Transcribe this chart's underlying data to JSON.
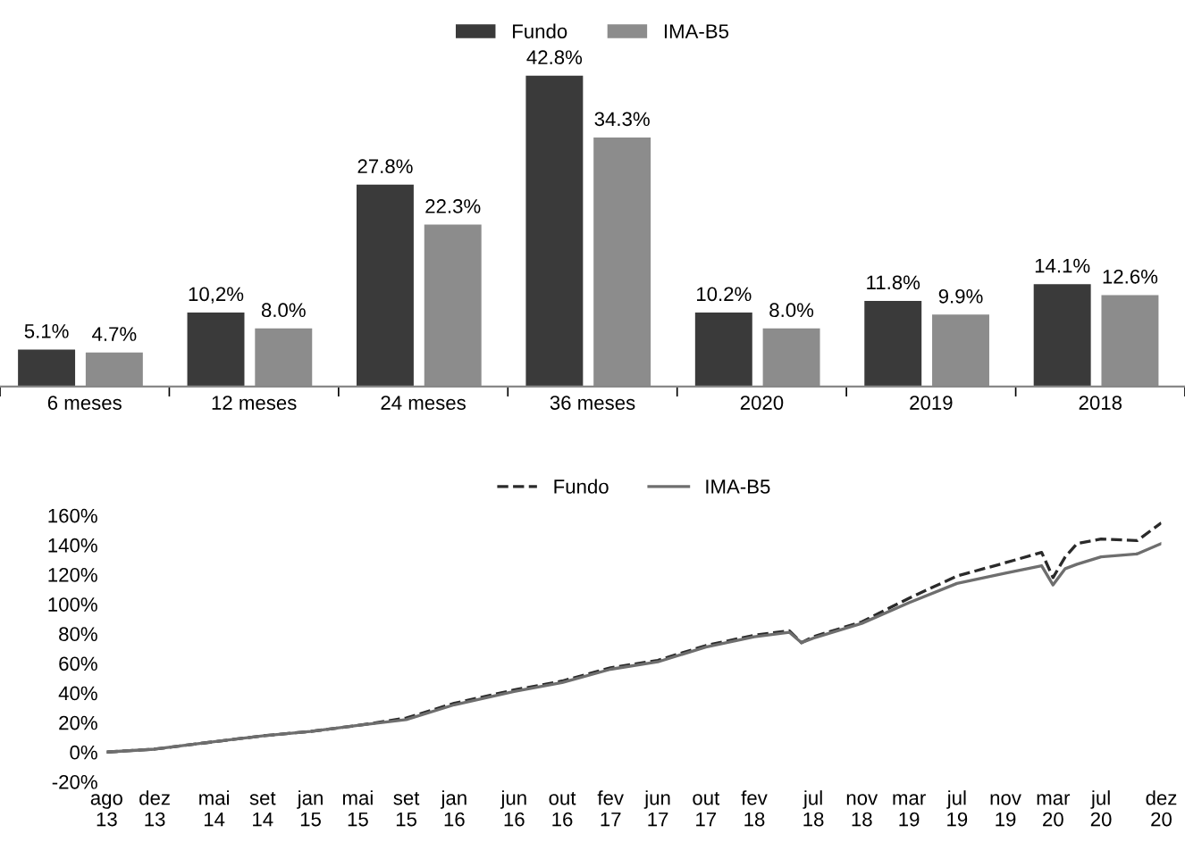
{
  "chart_data": [
    {
      "type": "bar",
      "categories": [
        "6 meses",
        "12 meses",
        "24 meses",
        "36 meses",
        "2020",
        "2019",
        "2018"
      ],
      "legend": "top",
      "series": [
        {
          "name": "Fundo",
          "color": "#3a3a3a",
          "values": [
            5.1,
            10.2,
            27.8,
            42.8,
            10.2,
            11.8,
            14.1
          ],
          "value_labels": [
            "5.1%",
            "10,2%",
            "27.8%",
            "42.8%",
            "10.2%",
            "11.8%",
            "14.1%"
          ]
        },
        {
          "name": "IMA-B5",
          "color": "#8c8c8c",
          "values": [
            4.7,
            8.0,
            22.3,
            34.3,
            8.0,
            9.9,
            12.6
          ],
          "value_labels": [
            "4.7%",
            "8.0%",
            "22.3%",
            "34.3%",
            "8.0%",
            "9.9%",
            "12.6%"
          ]
        }
      ]
    },
    {
      "type": "line",
      "legend": "top",
      "grid": false,
      "ylim": [
        -20,
        160
      ],
      "yticks": [
        {
          "value": -20,
          "label": "-20%"
        },
        {
          "value": 0,
          "label": "0%"
        },
        {
          "value": 20,
          "label": "20%"
        },
        {
          "value": 40,
          "label": "40%"
        },
        {
          "value": 60,
          "label": "60%"
        },
        {
          "value": 80,
          "label": "80%"
        },
        {
          "value": 100,
          "label": "100%"
        },
        {
          "value": 120,
          "label": "120%"
        },
        {
          "value": 140,
          "label": "140%"
        },
        {
          "value": 160,
          "label": "160%"
        }
      ],
      "xlim": [
        "2013-08",
        "2020-12"
      ],
      "xticks": [
        {
          "value": "2013-08",
          "label": "ago\n13"
        },
        {
          "value": "2013-12",
          "label": "dez\n13"
        },
        {
          "value": "2014-05",
          "label": "mai\n14"
        },
        {
          "value": "2014-09",
          "label": "set\n14"
        },
        {
          "value": "2015-01",
          "label": "jan\n15"
        },
        {
          "value": "2015-05",
          "label": "mai\n15"
        },
        {
          "value": "2015-09",
          "label": "set\n15"
        },
        {
          "value": "2016-01",
          "label": "jan\n16"
        },
        {
          "value": "2016-06",
          "label": "jun\n16"
        },
        {
          "value": "2016-10",
          "label": "out\n16"
        },
        {
          "value": "2017-02",
          "label": "fev\n17"
        },
        {
          "value": "2017-06",
          "label": "jun\n17"
        },
        {
          "value": "2017-10",
          "label": "out\n17"
        },
        {
          "value": "2018-02",
          "label": "fev\n18"
        },
        {
          "value": "2018-07",
          "label": "jul\n18"
        },
        {
          "value": "2018-11",
          "label": "nov\n18"
        },
        {
          "value": "2019-03",
          "label": "mar\n19"
        },
        {
          "value": "2019-07",
          "label": "jul\n19"
        },
        {
          "value": "2019-11",
          "label": "nov\n19"
        },
        {
          "value": "2020-03",
          "label": "mar\n20"
        },
        {
          "value": "2020-07",
          "label": "jul\n20"
        },
        {
          "value": "2020-12",
          "label": "dez\n20"
        }
      ],
      "series": [
        {
          "name": "Fundo",
          "color": "#2a2a2a",
          "line_style": "dashed",
          "x": [
            "2013-08",
            "2013-12",
            "2014-05",
            "2014-09",
            "2015-01",
            "2015-05",
            "2015-09",
            "2016-01",
            "2016-06",
            "2016-10",
            "2017-02",
            "2017-06",
            "2017-10",
            "2018-02",
            "2018-05",
            "2018-06",
            "2018-07",
            "2018-11",
            "2019-03",
            "2019-07",
            "2019-11",
            "2020-02",
            "2020-03",
            "2020-04",
            "2020-05",
            "2020-07",
            "2020-10",
            "2020-12"
          ],
          "values": [
            0,
            2,
            7,
            11,
            14,
            18,
            23,
            33,
            42,
            48,
            57,
            62,
            72,
            79,
            82,
            74,
            78,
            88,
            104,
            119,
            128,
            135,
            118,
            132,
            141,
            144,
            143,
            155
          ]
        },
        {
          "name": "IMA-B5",
          "color": "#6e6e6e",
          "line_style": "solid",
          "x": [
            "2013-08",
            "2013-12",
            "2014-05",
            "2014-09",
            "2015-01",
            "2015-05",
            "2015-09",
            "2016-01",
            "2016-06",
            "2016-10",
            "2017-02",
            "2017-06",
            "2017-10",
            "2018-02",
            "2018-05",
            "2018-06",
            "2018-07",
            "2018-11",
            "2019-03",
            "2019-07",
            "2019-11",
            "2020-02",
            "2020-03",
            "2020-04",
            "2020-05",
            "2020-07",
            "2020-10",
            "2020-12"
          ],
          "values": [
            0,
            2,
            7,
            11,
            14,
            18,
            22,
            32,
            41,
            47,
            56,
            61,
            71,
            78,
            81,
            74,
            77,
            87,
            101,
            114,
            121,
            126,
            113,
            124,
            127,
            132,
            134,
            141
          ]
        }
      ]
    }
  ]
}
